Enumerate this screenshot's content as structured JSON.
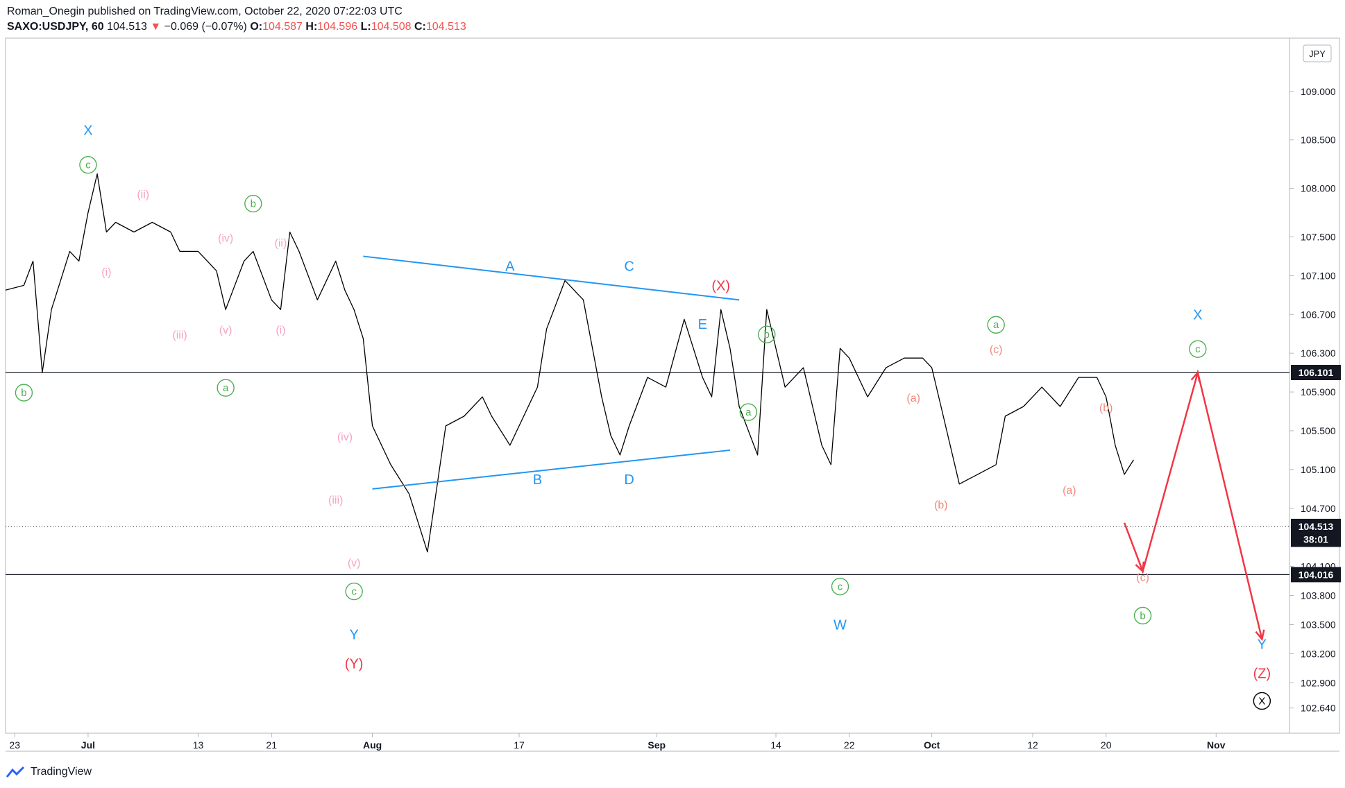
{
  "header": {
    "publisher_line": "Roman_Onegin published on TradingView.com, October 22, 2020 07:22:03 UTC",
    "symbol": "SAXO:USDJPY, 60",
    "last": "104.513",
    "change_arrow": "▼",
    "change": "−0.069 (−0.07%)",
    "o_label": "O:",
    "o_value": "104.587",
    "h_label": "H:",
    "h_value": "104.596",
    "l_label": "L:",
    "l_value": "104.508",
    "c_label": "C:",
    "c_value": "104.513"
  },
  "footer": {
    "brand": "TradingView",
    "logo_icon": "tradingview-logo-icon"
  },
  "colors": {
    "price": "#000000",
    "blue": "#2196f3",
    "red": "#f23645",
    "green": "#4caf50",
    "pink": "#f8a1c4",
    "salmon": "#f08a7e"
  },
  "chart_data": {
    "type": "line",
    "currency": "JPY",
    "ylim": [
      102.38,
      109.55
    ],
    "xlim": [
      "2020-06-22",
      "2020-11-09"
    ],
    "y_ticks": [
      "109.000",
      "108.500",
      "108.000",
      "107.500",
      "107.100",
      "106.700",
      "106.300",
      "105.900",
      "105.500",
      "105.100",
      "104.700",
      "104.100",
      "103.800",
      "103.500",
      "103.200",
      "102.900",
      "102.640"
    ],
    "x_ticks": [
      {
        "label": "23",
        "date": "2020-06-23"
      },
      {
        "label": "Jul",
        "date": "2020-07-01"
      },
      {
        "label": "13",
        "date": "2020-07-13"
      },
      {
        "label": "21",
        "date": "2020-07-21"
      },
      {
        "label": "Aug",
        "date": "2020-08-01"
      },
      {
        "label": "17",
        "date": "2020-08-17"
      },
      {
        "label": "Sep",
        "date": "2020-09-01"
      },
      {
        "label": "14",
        "date": "2020-09-14"
      },
      {
        "label": "22",
        "date": "2020-09-22"
      },
      {
        "label": "Oct",
        "date": "2020-10-01"
      },
      {
        "label": "12",
        "date": "2020-10-12"
      },
      {
        "label": "20",
        "date": "2020-10-20"
      },
      {
        "label": "Nov",
        "date": "2020-11-01"
      }
    ],
    "price_labels": [
      {
        "text": "106.101",
        "value": 106.101,
        "style": "dark"
      },
      {
        "text": "104.513",
        "value": 104.513,
        "style": "dark"
      },
      {
        "text": "38:01",
        "value": 104.38,
        "style": "dark"
      },
      {
        "text": "104.016",
        "value": 104.016,
        "style": "dark"
      }
    ],
    "horizontal_lines": [
      106.101,
      104.016
    ],
    "dotted_lines": [
      104.513
    ],
    "series": [
      {
        "x": [
          "2020-06-22",
          "2020-06-24",
          "2020-06-25",
          "2020-06-26",
          "2020-06-27",
          "2020-06-28",
          "2020-06-29",
          "2020-06-30",
          "2020-07-01",
          "2020-07-02",
          "2020-07-03",
          "2020-07-04",
          "2020-07-06",
          "2020-07-08",
          "2020-07-10",
          "2020-07-11",
          "2020-07-13",
          "2020-07-15",
          "2020-07-16",
          "2020-07-18",
          "2020-07-19",
          "2020-07-21",
          "2020-07-22",
          "2020-07-23",
          "2020-07-24",
          "2020-07-26",
          "2020-07-28",
          "2020-07-29",
          "2020-07-30",
          "2020-07-31",
          "2020-08-01",
          "2020-08-03",
          "2020-08-05",
          "2020-08-07",
          "2020-08-09",
          "2020-08-11",
          "2020-08-13",
          "2020-08-14",
          "2020-08-16",
          "2020-08-18",
          "2020-08-19",
          "2020-08-20",
          "2020-08-22",
          "2020-08-24",
          "2020-08-25",
          "2020-08-26",
          "2020-08-27",
          "2020-08-28",
          "2020-08-29",
          "2020-08-31",
          "2020-09-02",
          "2020-09-04",
          "2020-09-06",
          "2020-09-07",
          "2020-09-08",
          "2020-09-09",
          "2020-09-10",
          "2020-09-12",
          "2020-09-13",
          "2020-09-15",
          "2020-09-17",
          "2020-09-19",
          "2020-09-20",
          "2020-09-21",
          "2020-09-22",
          "2020-09-24",
          "2020-09-26",
          "2020-09-28",
          "2020-09-30",
          "2020-10-01",
          "2020-10-02",
          "2020-10-04",
          "2020-10-06",
          "2020-10-08",
          "2020-10-09",
          "2020-10-11",
          "2020-10-13",
          "2020-10-15",
          "2020-10-17",
          "2020-10-19",
          "2020-10-20",
          "2020-10-21",
          "2020-10-22",
          "2020-10-23"
        ],
        "values": [
          106.95,
          107.0,
          107.25,
          106.1,
          106.75,
          107.05,
          107.35,
          107.25,
          107.75,
          108.15,
          107.55,
          107.65,
          107.55,
          107.65,
          107.55,
          107.35,
          107.35,
          107.15,
          106.75,
          107.25,
          107.35,
          106.85,
          106.75,
          107.55,
          107.35,
          106.85,
          107.25,
          106.95,
          106.75,
          106.45,
          105.55,
          105.15,
          104.85,
          104.25,
          105.55,
          105.65,
          105.85,
          105.65,
          105.35,
          105.75,
          105.95,
          106.55,
          107.05,
          106.85,
          106.35,
          105.85,
          105.45,
          105.25,
          105.55,
          106.05,
          105.95,
          106.65,
          106.05,
          105.85,
          106.75,
          106.35,
          105.75,
          105.25,
          106.75,
          105.95,
          106.15,
          105.35,
          105.15,
          106.35,
          106.25,
          105.85,
          106.15,
          106.25,
          106.25,
          106.15,
          105.75,
          104.95,
          105.05,
          105.15,
          105.65,
          105.75,
          105.95,
          105.75,
          106.05,
          106.05,
          105.85,
          105.35,
          105.05,
          105.2
        ],
        "name": ""
      }
    ],
    "trendlines": [
      {
        "color": "blue",
        "from": {
          "x": "2020-07-31",
          "y": 107.3
        },
        "to": {
          "x": "2020-09-10",
          "y": 106.85
        }
      },
      {
        "color": "blue",
        "from": {
          "x": "2020-08-01",
          "y": 104.9
        },
        "to": {
          "x": "2020-09-09",
          "y": 105.3
        }
      }
    ],
    "arrows": [
      {
        "color": "red",
        "points": [
          {
            "x": "2020-10-22",
            "y": 104.55
          },
          {
            "x": "2020-10-24",
            "y": 104.05
          },
          {
            "x": "2020-10-30",
            "y": 106.1
          },
          {
            "x": "2020-11-06",
            "y": 103.35
          }
        ]
      }
    ],
    "annotations": [
      {
        "text": "X",
        "x": "2020-07-01",
        "y": 108.55,
        "color": "blue",
        "circle": false
      },
      {
        "text": "c",
        "x": "2020-07-01",
        "y": 108.2,
        "color": "green",
        "circle": true
      },
      {
        "text": "(ii)",
        "x": "2020-07-07",
        "y": 107.9,
        "color": "pink",
        "circle": false
      },
      {
        "text": "(i)",
        "x": "2020-07-03",
        "y": 107.1,
        "color": "pink",
        "circle": false
      },
      {
        "text": "(iv)",
        "x": "2020-07-16",
        "y": 107.45,
        "color": "pink",
        "circle": false
      },
      {
        "text": "(iii)",
        "x": "2020-07-11",
        "y": 106.45,
        "color": "pink",
        "circle": false
      },
      {
        "text": "(v)",
        "x": "2020-07-16",
        "y": 106.5,
        "color": "pink",
        "circle": false
      },
      {
        "text": "b",
        "x": "2020-07-19",
        "y": 107.8,
        "color": "green",
        "circle": true
      },
      {
        "text": "(ii)",
        "x": "2020-07-22",
        "y": 107.4,
        "color": "pink",
        "circle": false
      },
      {
        "text": "(i)",
        "x": "2020-07-22",
        "y": 106.5,
        "color": "pink",
        "circle": false
      },
      {
        "text": "b",
        "x": "2020-06-24",
        "y": 105.85,
        "color": "green",
        "circle": true
      },
      {
        "text": "a",
        "x": "2020-07-16",
        "y": 105.9,
        "color": "green",
        "circle": true
      },
      {
        "text": "(iv)",
        "x": "2020-07-29",
        "y": 105.4,
        "color": "pink",
        "circle": false
      },
      {
        "text": "(iii)",
        "x": "2020-07-28",
        "y": 104.75,
        "color": "pink",
        "circle": false
      },
      {
        "text": "(v)",
        "x": "2020-07-30",
        "y": 104.1,
        "color": "pink",
        "circle": false
      },
      {
        "text": "c",
        "x": "2020-07-30",
        "y": 103.8,
        "color": "green",
        "circle": true
      },
      {
        "text": "Y",
        "x": "2020-07-30",
        "y": 103.35,
        "color": "blue",
        "circle": false
      },
      {
        "text": "(Y)",
        "x": "2020-07-30",
        "y": 103.05,
        "color": "red",
        "circle": false
      },
      {
        "text": "A",
        "x": "2020-08-16",
        "y": 107.15,
        "color": "blue",
        "circle": false
      },
      {
        "text": "B",
        "x": "2020-08-19",
        "y": 104.95,
        "color": "blue",
        "circle": false
      },
      {
        "text": "C",
        "x": "2020-08-29",
        "y": 107.15,
        "color": "blue",
        "circle": false
      },
      {
        "text": "D",
        "x": "2020-08-29",
        "y": 104.95,
        "color": "blue",
        "circle": false
      },
      {
        "text": "E",
        "x": "2020-09-06",
        "y": 106.55,
        "color": "blue",
        "circle": false
      },
      {
        "text": "(X)",
        "x": "2020-09-08",
        "y": 106.95,
        "color": "red",
        "circle": false
      },
      {
        "text": "b",
        "x": "2020-09-13",
        "y": 106.45,
        "color": "green",
        "circle": true
      },
      {
        "text": "a",
        "x": "2020-09-11",
        "y": 105.65,
        "color": "green",
        "circle": true
      },
      {
        "text": "c",
        "x": "2020-09-21",
        "y": 103.85,
        "color": "green",
        "circle": true
      },
      {
        "text": "W",
        "x": "2020-09-21",
        "y": 103.45,
        "color": "blue",
        "circle": false
      },
      {
        "text": "(a)",
        "x": "2020-09-29",
        "y": 105.8,
        "color": "salmon",
        "circle": false
      },
      {
        "text": "(b)",
        "x": "2020-10-02",
        "y": 104.7,
        "color": "salmon",
        "circle": false
      },
      {
        "text": "a",
        "x": "2020-10-08",
        "y": 106.55,
        "color": "green",
        "circle": true
      },
      {
        "text": "(c)",
        "x": "2020-10-08",
        "y": 106.3,
        "color": "salmon",
        "circle": false
      },
      {
        "text": "(a)",
        "x": "2020-10-16",
        "y": 104.85,
        "color": "salmon",
        "circle": false
      },
      {
        "text": "(b)",
        "x": "2020-10-20",
        "y": 105.7,
        "color": "salmon",
        "circle": false
      },
      {
        "text": "(c)",
        "x": "2020-10-24",
        "y": 103.95,
        "color": "salmon",
        "circle": false
      },
      {
        "text": "b",
        "x": "2020-10-24",
        "y": 103.55,
        "color": "green",
        "circle": true
      },
      {
        "text": "X",
        "x": "2020-10-30",
        "y": 106.65,
        "color": "blue",
        "circle": false
      },
      {
        "text": "c",
        "x": "2020-10-30",
        "y": 106.3,
        "color": "green",
        "circle": true
      },
      {
        "text": "Y",
        "x": "2020-11-06",
        "y": 103.25,
        "color": "blue",
        "circle": false
      },
      {
        "text": "(Z)",
        "x": "2020-11-06",
        "y": 102.95,
        "color": "red",
        "circle": false
      },
      {
        "text": "X",
        "x": "2020-11-06",
        "y": 102.67,
        "color": "black",
        "circle": true
      }
    ]
  }
}
